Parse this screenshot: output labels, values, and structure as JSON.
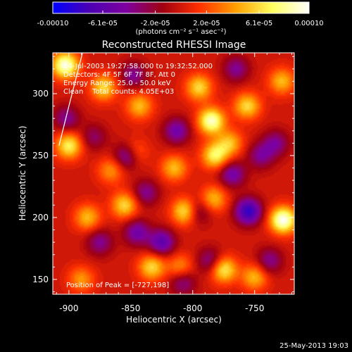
{
  "chart_data": {
    "type": "heatmap",
    "title": "Reconstructed RHESSI Image",
    "xlabel": "Heliocentric X (arcsec)",
    "ylabel": "Heliocentric Y (arcsec)",
    "xlim": [
      -913,
      -718
    ],
    "ylim": [
      138,
      333
    ],
    "x_ticks": [
      -900,
      -850,
      -800,
      -750
    ],
    "y_ticks": [
      150,
      200,
      250,
      300
    ],
    "x_tick_labels": [
      "-900",
      "-850",
      "-800",
      "-750"
    ],
    "y_tick_labels": [
      "150",
      "200",
      "250",
      "300"
    ],
    "colorbar": {
      "range": [
        -0.0001,
        0.0001
      ],
      "tick_values": [
        -0.0001,
        -6.1e-05,
        -2e-05,
        2e-05,
        6.1e-05,
        0.0001
      ],
      "tick_labels": [
        "-0.00010",
        "-6.1e-05",
        "-2.0e-05",
        "2.0e-05",
        "6.1e-05",
        "0.00010"
      ],
      "unit_label": "(photons cm⁻² s⁻¹ asec⁻²)"
    },
    "info_lines": [
      "14-Jul-2003 19:27:58.000 to 19:32:52.000",
      "Detectors: 4F 5F 6F 7F 8F, Att 0",
      "Energy Range: 25.0 - 50.0 keV",
      "Clean    Total counts: 4.05E+03"
    ],
    "position_text": "Position of Peak = [-727,198]",
    "timestamp": "25-May-2013 19:03",
    "sources": [
      {
        "x": -903,
        "y": 323,
        "amp": 9.5e-05
      },
      {
        "x": -900,
        "y": 258,
        "amp": 7e-05
      },
      {
        "x": -872,
        "y": 305,
        "amp": 6e-05
      },
      {
        "x": -866,
        "y": 238,
        "amp": 4e-05
      },
      {
        "x": -885,
        "y": 200,
        "amp": 5e-05
      },
      {
        "x": -855,
        "y": 210,
        "amp": 6e-05
      },
      {
        "x": -848,
        "y": 252,
        "amp": 6e-05
      },
      {
        "x": -843,
        "y": 290,
        "amp": 5e-05
      },
      {
        "x": -833,
        "y": 160,
        "amp": 6e-05
      },
      {
        "x": -815,
        "y": 240,
        "amp": 5e-05
      },
      {
        "x": -806,
        "y": 205,
        "amp": 7e-05
      },
      {
        "x": -795,
        "y": 305,
        "amp": 6e-05
      },
      {
        "x": -785,
        "y": 278,
        "amp": 9e-05
      },
      {
        "x": -782,
        "y": 250,
        "amp": 7e-05
      },
      {
        "x": -783,
        "y": 215,
        "amp": 5e-05
      },
      {
        "x": -770,
        "y": 260,
        "amp": 5e-05
      },
      {
        "x": -775,
        "y": 158,
        "amp": 7e-05
      },
      {
        "x": -756,
        "y": 290,
        "amp": 6e-05
      },
      {
        "x": -750,
        "y": 152,
        "amp": 5e-05
      },
      {
        "x": -727,
        "y": 198,
        "amp": 0.0001
      },
      {
        "x": -728,
        "y": 310,
        "amp": 5e-05
      },
      {
        "x": -890,
        "y": 150,
        "amp": 4e-05
      },
      {
        "x": -810,
        "y": 160,
        "amp": 4e-05
      },
      {
        "x": -902,
        "y": 280,
        "amp": -4e-05
      },
      {
        "x": -880,
        "y": 265,
        "amp": -3e-05
      },
      {
        "x": -875,
        "y": 180,
        "amp": -4e-05
      },
      {
        "x": -852,
        "y": 250,
        "amp": -8e-05
      },
      {
        "x": -848,
        "y": 315,
        "amp": -4e-05
      },
      {
        "x": -845,
        "y": 188,
        "amp": -5e-05
      },
      {
        "x": -838,
        "y": 220,
        "amp": -4e-05
      },
      {
        "x": -825,
        "y": 180,
        "amp": -6e-05
      },
      {
        "x": -813,
        "y": 270,
        "amp": -5e-05
      },
      {
        "x": -808,
        "y": 148,
        "amp": -4e-05
      },
      {
        "x": -796,
        "y": 205,
        "amp": -4e-05
      },
      {
        "x": -786,
        "y": 165,
        "amp": -4e-05
      },
      {
        "x": -768,
        "y": 235,
        "amp": -5e-05
      },
      {
        "x": -765,
        "y": 320,
        "amp": -4e-05
      },
      {
        "x": -755,
        "y": 205,
        "amp": -8e-05
      },
      {
        "x": -745,
        "y": 250,
        "amp": -4e-05
      },
      {
        "x": -733,
        "y": 260,
        "amp": -4e-05
      },
      {
        "x": -738,
        "y": 165,
        "amp": -4e-05
      }
    ],
    "limb_arc": [
      [
        -908,
        258
      ],
      [
        -900,
        290
      ],
      [
        -889,
        333
      ]
    ],
    "colors": {
      "colorbar_stops": [
        "#0000ff",
        "#4b00b3",
        "#7f00a0",
        "#a00010",
        "#ff3000",
        "#ffa000",
        "#ffff60",
        "#ffffff"
      ],
      "background": "#000000",
      "text": "#ffffff"
    }
  }
}
